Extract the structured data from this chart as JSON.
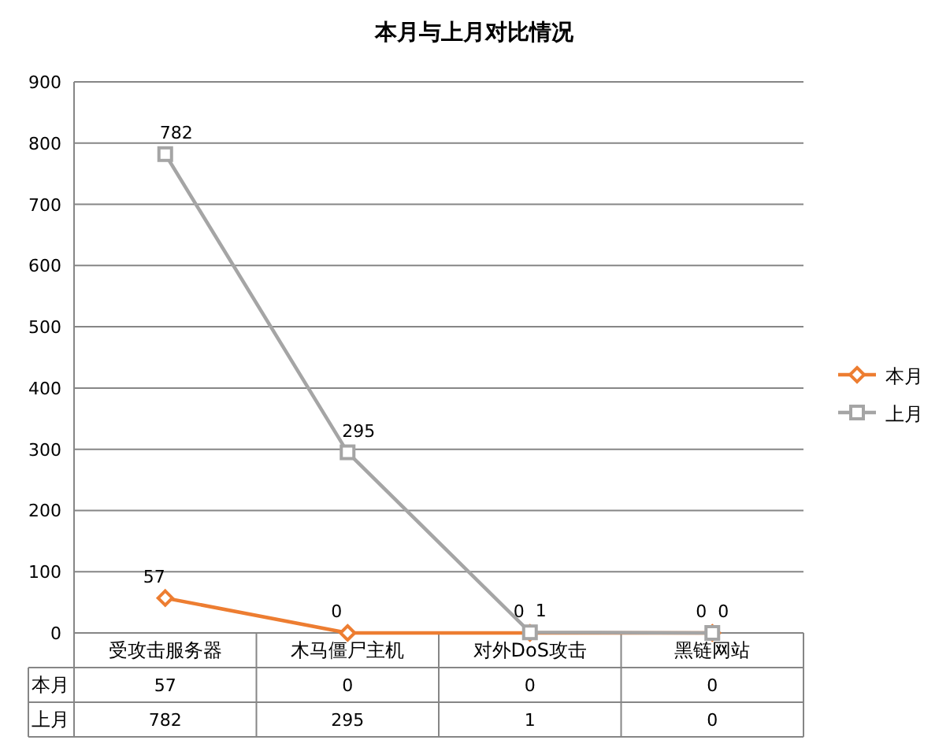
{
  "chart_data": {
    "type": "line",
    "title": "本月与上月对比情况",
    "categories": [
      "受攻击服务器",
      "木马僵尸主机",
      "对外DoS攻击",
      "黑链网站"
    ],
    "series": [
      {
        "name": "本月",
        "color": "#ed7d31",
        "marker": "diamond",
        "values": [
          57,
          0,
          0,
          0
        ],
        "value_labels": [
          "57",
          "0",
          "0",
          "0"
        ]
      },
      {
        "name": "上月",
        "color": "#a5a5a5",
        "marker": "square",
        "values": [
          782,
          295,
          1,
          0
        ],
        "value_labels": [
          "782",
          "295",
          "1",
          "0"
        ]
      }
    ],
    "ylim": [
      0,
      900
    ],
    "yticks": [
      0,
      100,
      200,
      300,
      400,
      500,
      600,
      700,
      800,
      900
    ],
    "grid": "y",
    "legend": "right",
    "annotations": [
      "57",
      "0",
      "0",
      "0",
      "782",
      "295",
      "1",
      "0"
    ]
  }
}
